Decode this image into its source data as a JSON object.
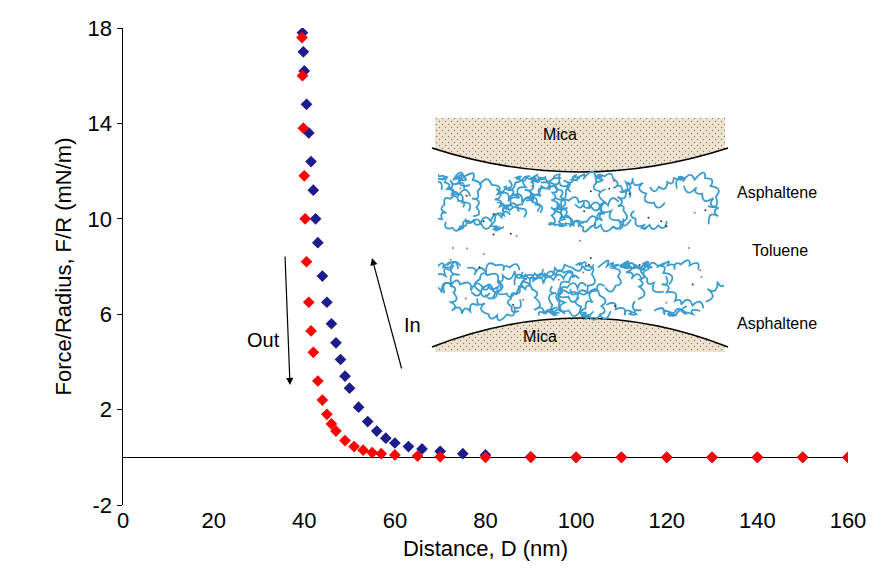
{
  "chart_data": {
    "type": "scatter",
    "x_label": "Distance, D (nm)",
    "y_label": "Force/Radius, F/R (mN/m)",
    "xlim": [
      0,
      160
    ],
    "xticks": [
      0,
      20,
      40,
      60,
      80,
      100,
      120,
      140,
      160
    ],
    "ylim": [
      -2,
      18
    ],
    "yticks": [
      -2,
      2,
      6,
      10,
      14,
      18
    ],
    "grid": false,
    "series": [
      {
        "name": "In",
        "color": "#1c1c8c",
        "marker": "diamond",
        "x": [
          160,
          150,
          140,
          130,
          120,
          110,
          100,
          90,
          80,
          75,
          70,
          66,
          63,
          60,
          58,
          56,
          54,
          52,
          50,
          49,
          48,
          47,
          46,
          45,
          44,
          43,
          42.5,
          42,
          41.5,
          41,
          40.5,
          40,
          39.8,
          39.6
        ],
        "values": [
          0,
          0,
          0,
          0,
          0,
          0,
          0,
          0.02,
          0.1,
          0.15,
          0.25,
          0.35,
          0.45,
          0.6,
          0.8,
          1.1,
          1.5,
          2.1,
          2.9,
          3.4,
          4.1,
          4.8,
          5.6,
          6.5,
          7.6,
          9.0,
          10.0,
          11.2,
          12.4,
          13.6,
          14.8,
          16.2,
          17.0,
          17.8
        ]
      },
      {
        "name": "Out",
        "color": "#ff0000",
        "marker": "diamond",
        "x": [
          160,
          150,
          140,
          130,
          120,
          110,
          100,
          90,
          80,
          70,
          65,
          60,
          57,
          55,
          53,
          51,
          49,
          47,
          46,
          45,
          44,
          43,
          42,
          41.5,
          41,
          40.5,
          40.2,
          40,
          39.8,
          39.6,
          39.5
        ],
        "values": [
          0,
          0,
          0,
          0,
          0,
          0,
          0,
          0,
          0,
          0.02,
          0.05,
          0.1,
          0.15,
          0.2,
          0.3,
          0.45,
          0.7,
          1.1,
          1.4,
          1.8,
          2.4,
          3.2,
          4.4,
          5.3,
          6.5,
          8.2,
          10.0,
          11.8,
          13.8,
          16.0,
          17.6
        ]
      }
    ],
    "inset": {
      "top_plate": "Mica",
      "upper_layer": "Asphaltene",
      "solvent": "Toluene",
      "lower_layer": "Asphaltene",
      "bottom_plate": "Mica"
    }
  }
}
